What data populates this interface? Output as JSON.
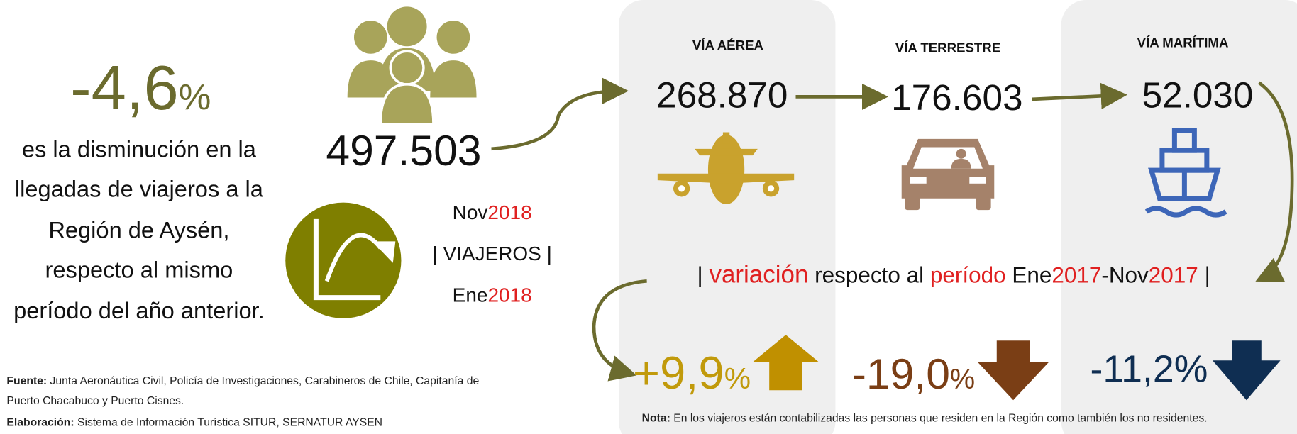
{
  "headline": {
    "value": "-4,6",
    "unit": "%",
    "description": [
      "es la disminución en la",
      "llegadas de viajeros a la",
      "Región de Aysén,",
      "respecto al mismo",
      "período del año anterior."
    ]
  },
  "total": "497.503",
  "period": {
    "end_month": "Nov",
    "end_year": "2018",
    "label": "| VIAJEROS |",
    "start_month": "Ene",
    "start_year": "2018"
  },
  "modes": [
    {
      "title": "VÍA AÉREA",
      "value": "268.870",
      "change": "+9,9",
      "change_unit": "%"
    },
    {
      "title": "VÍA TERRESTRE",
      "value": "176.603",
      "change": "-19,0",
      "change_unit": "%"
    },
    {
      "title": "VÍA MARÍTIMA",
      "value": "52.030",
      "change": "-11,2%"
    }
  ],
  "variation": {
    "open": "|",
    "word": "variación",
    "middle": "respecto al",
    "period_word": "período",
    "start_month": "Ene",
    "start_year": "2017",
    "end_month": "-Nov",
    "end_year": "2017",
    "close": "|"
  },
  "sources": {
    "fuente_label": "Fuente:",
    "fuente_lines": [
      "Junta Aeronáutica Civil, Policía de Investigaciones, Carabineros de Chile, Capitanía de",
      "Puerto Chacabuco y Puerto Cisnes."
    ],
    "elaboracion_label": "Elaboración:",
    "elaboracion_text": "Sistema de Información Turística SITUR, SERNATUR AYSEN"
  },
  "note": {
    "label": "Nota:",
    "text": "En los viajeros están contabilizadas las personas que residen en la Región como también los no residentes."
  }
}
